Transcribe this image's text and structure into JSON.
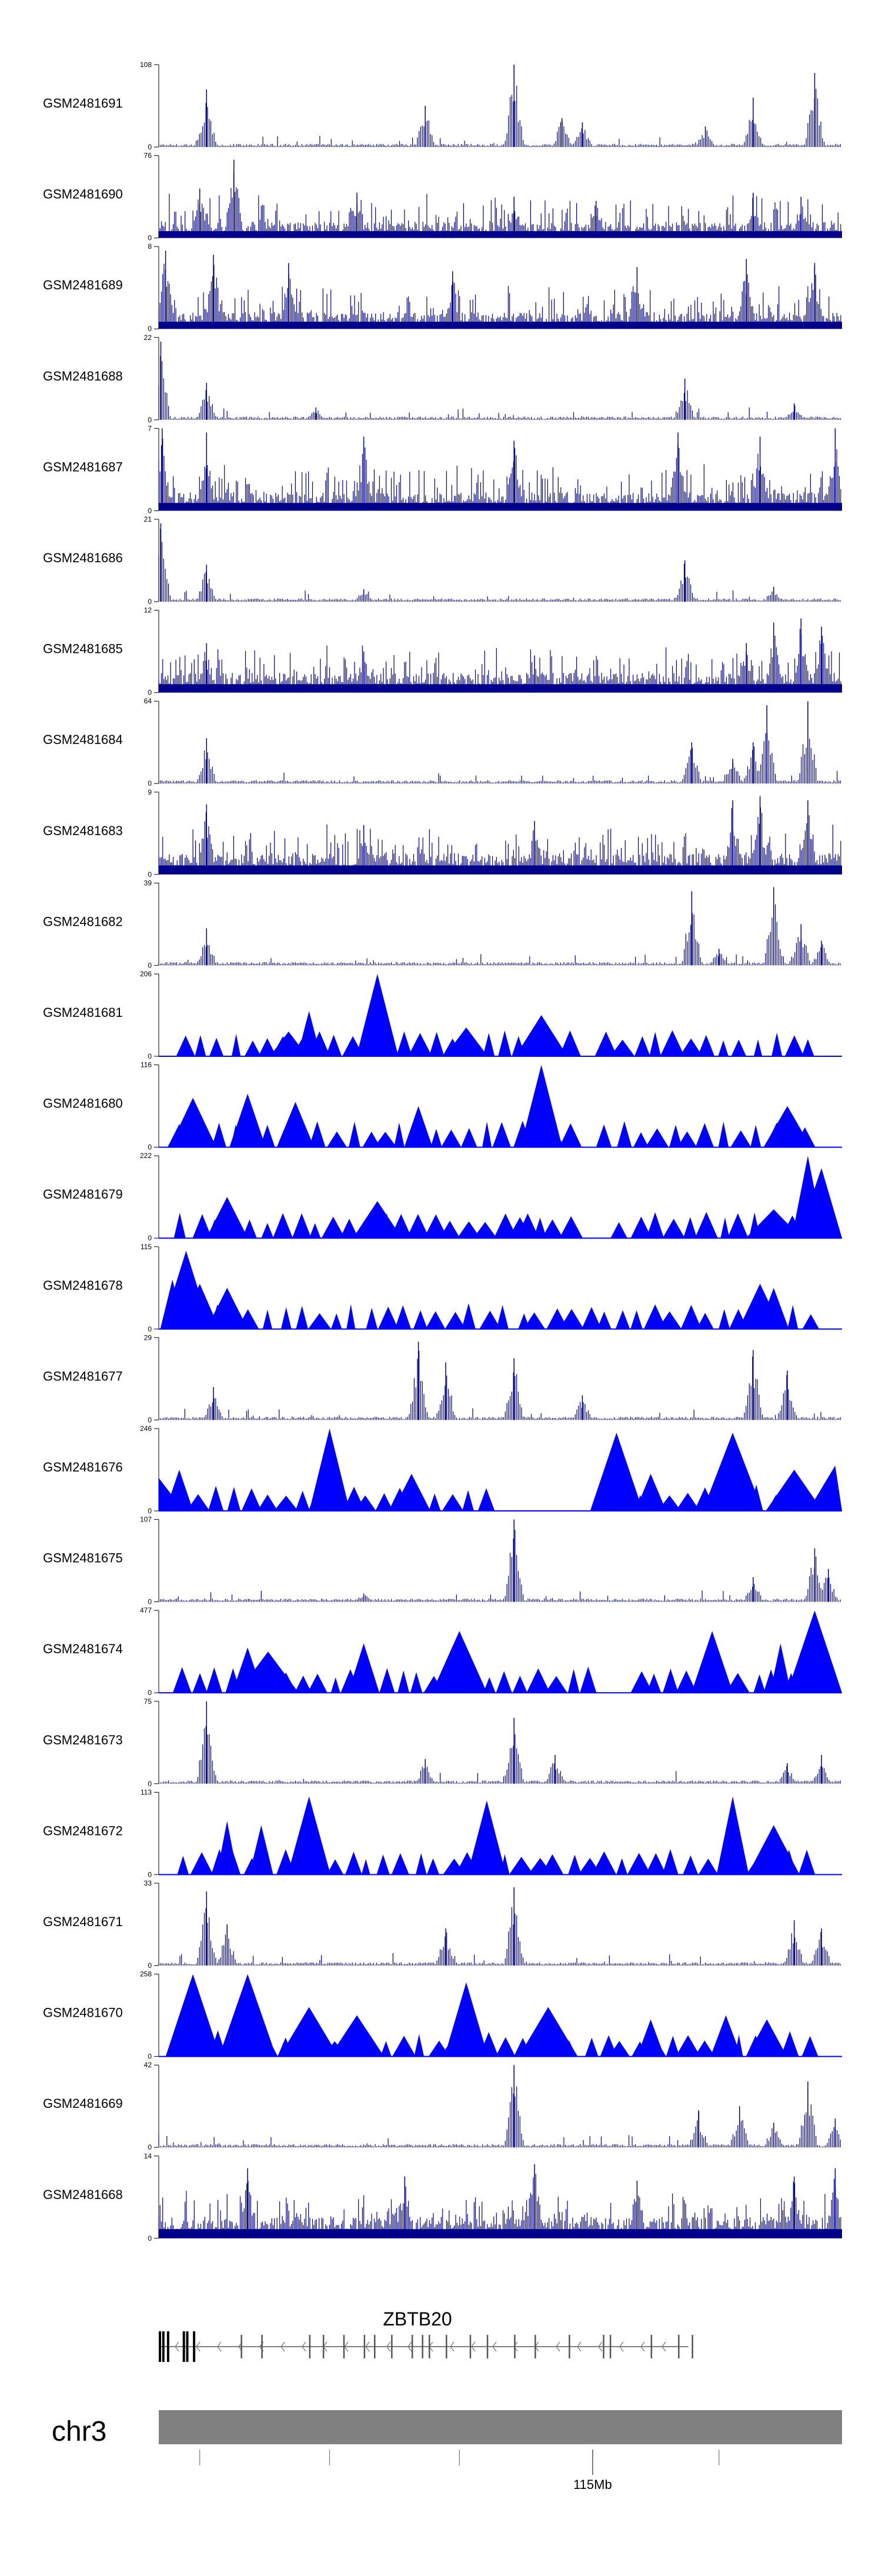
{
  "chart_data": {
    "type": "area",
    "title": "",
    "tracks": [
      {
        "name": "GSM2481691",
        "max": 108,
        "min": 0,
        "style": "spiky",
        "peaks": [
          [
            0.07,
            0.7
          ],
          [
            0.39,
            0.5
          ],
          [
            0.52,
            1.0
          ],
          [
            0.59,
            0.35
          ],
          [
            0.62,
            0.3
          ],
          [
            0.87,
            0.6
          ],
          [
            0.96,
            0.9
          ],
          [
            0.8,
            0.25
          ]
        ]
      },
      {
        "name": "GSM2481690",
        "max": 76,
        "min": 0,
        "style": "dense",
        "peaks": [
          [
            0.11,
            0.95
          ],
          [
            0.06,
            0.6
          ],
          [
            0.29,
            0.55
          ],
          [
            0.52,
            0.5
          ],
          [
            0.64,
            0.45
          ],
          [
            0.87,
            0.55
          ],
          [
            0.94,
            0.5
          ]
        ]
      },
      {
        "name": "GSM2481689",
        "max": 8,
        "min": 0,
        "style": "dense",
        "peaks": [
          [
            0.01,
            0.95
          ],
          [
            0.08,
            0.9
          ],
          [
            0.19,
            0.8
          ],
          [
            0.43,
            0.7
          ],
          [
            0.7,
            0.75
          ],
          [
            0.86,
            0.85
          ],
          [
            0.96,
            0.8
          ]
        ]
      },
      {
        "name": "GSM2481688",
        "max": 22,
        "min": 0,
        "style": "spiky",
        "peaks": [
          [
            0.003,
            0.95
          ],
          [
            0.07,
            0.45
          ],
          [
            0.77,
            0.5
          ],
          [
            0.23,
            0.15
          ],
          [
            0.93,
            0.2
          ]
        ]
      },
      {
        "name": "GSM2481687",
        "max": 7,
        "min": 0,
        "style": "dense",
        "peaks": [
          [
            0.005,
            1.0
          ],
          [
            0.07,
            0.95
          ],
          [
            0.3,
            0.9
          ],
          [
            0.52,
            0.85
          ],
          [
            0.76,
            0.95
          ],
          [
            0.88,
            0.9
          ],
          [
            0.99,
            1.0
          ]
        ]
      },
      {
        "name": "GSM2481686",
        "max": 21,
        "min": 0,
        "style": "spiky",
        "peaks": [
          [
            0.003,
            0.95
          ],
          [
            0.07,
            0.45
          ],
          [
            0.77,
            0.5
          ],
          [
            0.3,
            0.15
          ],
          [
            0.9,
            0.18
          ]
        ]
      },
      {
        "name": "GSM2481685",
        "max": 12,
        "min": 0,
        "style": "dense",
        "peaks": [
          [
            0.07,
            0.6
          ],
          [
            0.3,
            0.5
          ],
          [
            0.55,
            0.45
          ],
          [
            0.9,
            0.85
          ],
          [
            0.94,
            0.9
          ],
          [
            0.97,
            0.8
          ],
          [
            0.86,
            0.6
          ]
        ]
      },
      {
        "name": "GSM2481684",
        "max": 64,
        "min": 0,
        "style": "spiky",
        "peaks": [
          [
            0.07,
            0.55
          ],
          [
            0.89,
            0.95
          ],
          [
            0.95,
            1.0
          ],
          [
            0.87,
            0.5
          ],
          [
            0.78,
            0.5
          ],
          [
            0.84,
            0.3
          ]
        ]
      },
      {
        "name": "GSM2481683",
        "max": 9,
        "min": 0,
        "style": "dense",
        "peaks": [
          [
            0.07,
            0.85
          ],
          [
            0.3,
            0.6
          ],
          [
            0.55,
            0.65
          ],
          [
            0.84,
            0.9
          ],
          [
            0.88,
            0.95
          ],
          [
            0.95,
            0.9
          ]
        ]
      },
      {
        "name": "GSM2481682",
        "max": 39,
        "min": 0,
        "style": "spiky",
        "peaks": [
          [
            0.07,
            0.45
          ],
          [
            0.78,
            0.9
          ],
          [
            0.9,
            0.95
          ],
          [
            0.94,
            0.5
          ],
          [
            0.97,
            0.3
          ],
          [
            0.82,
            0.2
          ]
        ]
      },
      {
        "name": "GSM2481681",
        "max": 206,
        "min": 0,
        "style": "sparse",
        "peaks": [
          [
            0.32,
            1.0
          ],
          [
            0.22,
            0.55
          ],
          [
            0.56,
            0.5
          ],
          [
            0.19,
            0.3
          ],
          [
            0.45,
            0.35
          ],
          [
            0.62,
            0.3
          ]
        ],
        "gaps": [
          [
            0.62,
            0.64
          ]
        ]
      },
      {
        "name": "GSM2481680",
        "max": 116,
        "min": 0,
        "style": "sparse",
        "peaks": [
          [
            0.56,
            1.0
          ],
          [
            0.13,
            0.65
          ],
          [
            0.2,
            0.55
          ],
          [
            0.05,
            0.6
          ],
          [
            0.38,
            0.5
          ],
          [
            0.92,
            0.5
          ]
        ],
        "gaps": [
          [
            0.63,
            0.64
          ]
        ]
      },
      {
        "name": "GSM2481679",
        "max": 222,
        "min": 0,
        "style": "sparse",
        "peaks": [
          [
            0.95,
            1.0
          ],
          [
            0.97,
            0.85
          ],
          [
            0.1,
            0.5
          ],
          [
            0.32,
            0.45
          ],
          [
            0.54,
            0.3
          ],
          [
            0.9,
            0.35
          ]
        ],
        "gaps": [
          [
            0.62,
            0.67
          ]
        ]
      },
      {
        "name": "GSM2481678",
        "max": 115,
        "min": 0,
        "style": "sparse",
        "peaks": [
          [
            0.04,
            0.95
          ],
          [
            0.02,
            0.6
          ],
          [
            0.06,
            0.55
          ],
          [
            0.1,
            0.5
          ],
          [
            0.88,
            0.55
          ],
          [
            0.9,
            0.5
          ]
        ],
        "gaps": []
      },
      {
        "name": "GSM2481677",
        "max": 29,
        "min": 0,
        "style": "spiky",
        "peaks": [
          [
            0.38,
            0.95
          ],
          [
            0.42,
            0.7
          ],
          [
            0.52,
            0.75
          ],
          [
            0.08,
            0.4
          ],
          [
            0.87,
            0.85
          ],
          [
            0.92,
            0.6
          ],
          [
            0.62,
            0.3
          ]
        ]
      },
      {
        "name": "GSM2481676",
        "max": 246,
        "min": 0,
        "style": "sparse",
        "peaks": [
          [
            0.25,
            1.0
          ],
          [
            0.67,
            0.95
          ],
          [
            0.84,
            0.95
          ],
          [
            0.03,
            0.5
          ],
          [
            0.0,
            0.4
          ],
          [
            0.37,
            0.45
          ],
          [
            0.93,
            0.5
          ],
          [
            0.72,
            0.45
          ],
          [
            0.99,
            0.55
          ]
        ],
        "gaps": [
          [
            0.48,
            0.65
          ]
        ]
      },
      {
        "name": "GSM2481675",
        "max": 107,
        "min": 0,
        "style": "spiky",
        "peaks": [
          [
            0.52,
            1.0
          ],
          [
            0.96,
            0.65
          ],
          [
            0.87,
            0.3
          ],
          [
            0.98,
            0.4
          ],
          [
            0.3,
            0.1
          ]
        ]
      },
      {
        "name": "GSM2481674",
        "max": 477,
        "min": 0,
        "style": "sparse",
        "peaks": [
          [
            0.96,
            1.0
          ],
          [
            0.44,
            0.75
          ],
          [
            0.81,
            0.75
          ],
          [
            0.13,
            0.55
          ],
          [
            0.3,
            0.6
          ],
          [
            0.16,
            0.5
          ],
          [
            0.91,
            0.6
          ]
        ],
        "gaps": [
          [
            0.63,
            0.7
          ]
        ]
      },
      {
        "name": "GSM2481673",
        "max": 75,
        "min": 0,
        "style": "spiky",
        "peaks": [
          [
            0.07,
            1.0
          ],
          [
            0.52,
            0.8
          ],
          [
            0.58,
            0.35
          ],
          [
            0.39,
            0.3
          ],
          [
            0.97,
            0.35
          ],
          [
            0.92,
            0.25
          ]
        ]
      },
      {
        "name": "GSM2481672",
        "max": 113,
        "min": 0,
        "style": "sparse",
        "peaks": [
          [
            0.22,
            0.95
          ],
          [
            0.48,
            0.9
          ],
          [
            0.84,
            0.95
          ],
          [
            0.15,
            0.6
          ],
          [
            0.1,
            0.65
          ],
          [
            0.9,
            0.6
          ]
        ],
        "gaps": [
          [
            0.62,
            0.63
          ]
        ]
      },
      {
        "name": "GSM2481671",
        "max": 33,
        "min": 0,
        "style": "spiky",
        "peaks": [
          [
            0.07,
            0.9
          ],
          [
            0.52,
            0.95
          ],
          [
            0.1,
            0.5
          ],
          [
            0.42,
            0.45
          ],
          [
            0.93,
            0.55
          ],
          [
            0.97,
            0.45
          ]
        ]
      },
      {
        "name": "GSM2481670",
        "max": 258,
        "min": 0,
        "style": "sparse",
        "peaks": [
          [
            0.05,
            1.0
          ],
          [
            0.13,
            1.0
          ],
          [
            0.45,
            0.9
          ],
          [
            0.22,
            0.6
          ],
          [
            0.29,
            0.5
          ],
          [
            0.57,
            0.6
          ],
          [
            0.83,
            0.5
          ],
          [
            0.72,
            0.45
          ],
          [
            0.89,
            0.45
          ]
        ],
        "gaps": []
      },
      {
        "name": "GSM2481669",
        "max": 42,
        "min": 0,
        "style": "spiky",
        "peaks": [
          [
            0.52,
            1.0
          ],
          [
            0.95,
            0.8
          ],
          [
            0.79,
            0.45
          ],
          [
            0.85,
            0.5
          ],
          [
            0.9,
            0.3
          ],
          [
            0.99,
            0.35
          ]
        ]
      },
      {
        "name": "GSM2481668",
        "max": 14,
        "min": 0,
        "style": "dense",
        "peaks": [
          [
            0.13,
            0.85
          ],
          [
            0.36,
            0.75
          ],
          [
            0.55,
            0.9
          ],
          [
            0.7,
            0.7
          ],
          [
            0.93,
            0.75
          ],
          [
            0.99,
            0.85
          ]
        ]
      }
    ],
    "gene": {
      "name": "ZBTB20",
      "exons": [
        0.0,
        0.005,
        0.012,
        0.035,
        0.04,
        0.05,
        0.12,
        0.15,
        0.22,
        0.24,
        0.27,
        0.3,
        0.315,
        0.34,
        0.37,
        0.385,
        0.395,
        0.42,
        0.455,
        0.48,
        0.52,
        0.55,
        0.6,
        0.65,
        0.66,
        0.72,
        0.76,
        0.78
      ],
      "strand": "-",
      "end_fraction": 0.775
    },
    "chromosome": {
      "name": "chr3",
      "axis_label": "115Mb",
      "minor_ticks": [
        0.06,
        0.25,
        0.44,
        0.82
      ],
      "major_tick": 0.635
    }
  },
  "colors": {
    "signal": "#00008B",
    "region": "#0000FF",
    "chrom": "#808080"
  }
}
